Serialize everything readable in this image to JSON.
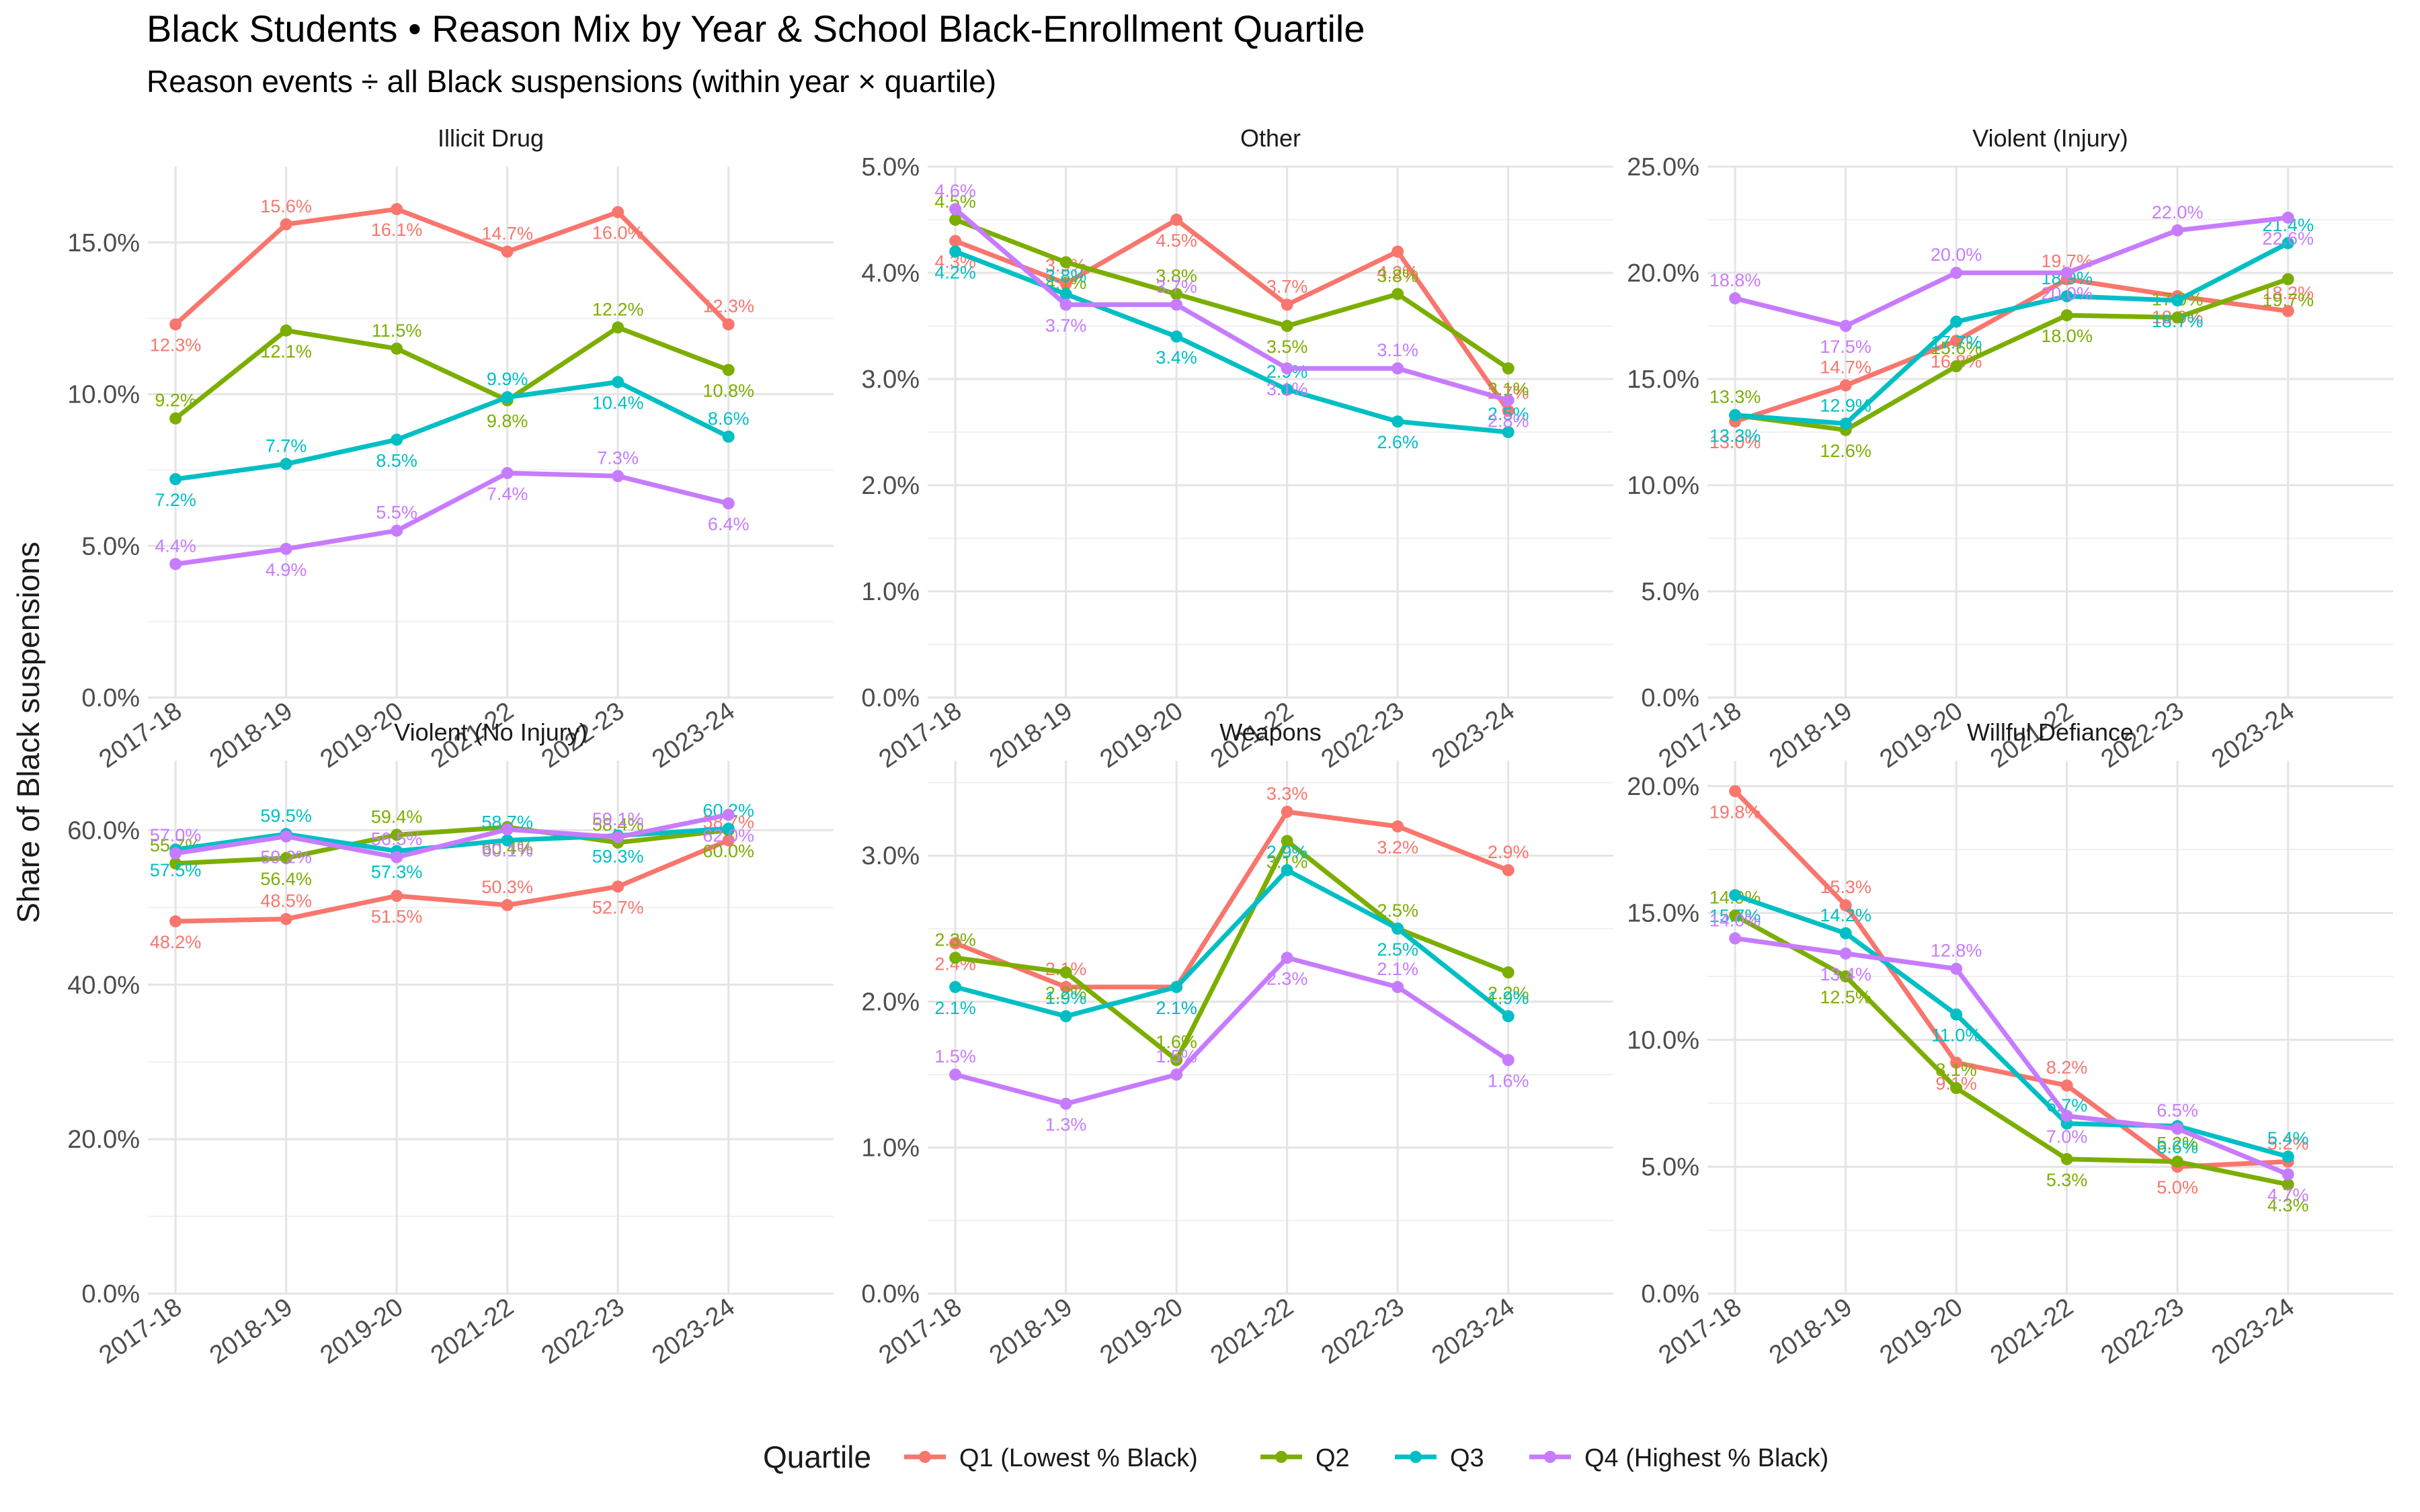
{
  "chart_data": {
    "type": "line",
    "title": "Black Students • Reason Mix by Year & School Black-Enrollment Quartile",
    "subtitle": "Reason events ÷ all Black suspensions (within year × quartile)",
    "ylabel": "Share of Black suspensions",
    "xlabel": "",
    "grid": true,
    "legend": {
      "title": "Quartile",
      "position": "bottom",
      "entries": [
        "Q1 (Lowest % Black)",
        "Q2",
        "Q3",
        "Q4 (Highest % Black)"
      ]
    },
    "categories": [
      "2017-18",
      "2018-19",
      "2019-20",
      "2021-22",
      "2022-23",
      "2023-24"
    ],
    "series_colors": [
      "#F8766D",
      "#7CAE00",
      "#00BFC4",
      "#C77CFF"
    ],
    "panels": [
      {
        "name": "Illicit Drug",
        "ylim": [
          0,
          0.175
        ],
        "yticks": [
          0,
          0.05,
          0.1,
          0.15
        ],
        "ytick_labels": [
          "0.0%",
          "5.0%",
          "10.0%",
          "15.0%"
        ],
        "series": [
          {
            "values": [
              0.123,
              0.156,
              0.161,
              0.147,
              0.16,
              0.123
            ],
            "labels": [
              "12.3%",
              "15.6%",
              "16.1%",
              "14.7%",
              "16.0%",
              "12.3%"
            ]
          },
          {
            "values": [
              0.092,
              0.121,
              0.115,
              0.098,
              0.122,
              0.108
            ],
            "labels": [
              "9.2%",
              "12.1%",
              "11.5%",
              "9.8%",
              "12.2%",
              "10.8%"
            ]
          },
          {
            "values": [
              0.072,
              0.077,
              0.085,
              0.099,
              0.104,
              0.086
            ],
            "labels": [
              "7.2%",
              "7.7%",
              "8.5%",
              "9.9%",
              "10.4%",
              "8.6%"
            ]
          },
          {
            "values": [
              0.044,
              0.049,
              0.055,
              0.074,
              0.073,
              0.064
            ],
            "labels": [
              "4.4%",
              "4.9%",
              "5.5%",
              "7.4%",
              "7.3%",
              "6.4%"
            ]
          }
        ]
      },
      {
        "name": "Other",
        "ylim": [
          0,
          0.05
        ],
        "yticks": [
          0,
          0.01,
          0.02,
          0.03,
          0.04,
          0.05
        ],
        "ytick_labels": [
          "0.0%",
          "1.0%",
          "2.0%",
          "3.0%",
          "4.0%",
          "5.0%"
        ],
        "series": [
          {
            "values": [
              0.043,
              0.039,
              0.045,
              0.037,
              0.042,
              0.027
            ],
            "labels": [
              "4.3%",
              "3.9%",
              "4.5%",
              "3.7%",
              "4.2%",
              "2.7%"
            ]
          },
          {
            "values": [
              0.045,
              0.041,
              0.038,
              0.035,
              0.038,
              0.031
            ],
            "labels": [
              "4.5%",
              "4.1%",
              "3.8%",
              "3.5%",
              "3.8%",
              "3.1%"
            ]
          },
          {
            "values": [
              0.042,
              0.038,
              0.034,
              0.029,
              0.026,
              0.025
            ],
            "labels": [
              "4.2%",
              "3.8%",
              "3.4%",
              "2.9%",
              "2.6%",
              "2.5%"
            ]
          },
          {
            "values": [
              0.046,
              0.037,
              0.037,
              0.031,
              0.031,
              0.028
            ],
            "labels": [
              "4.6%",
              "3.7%",
              "3.7%",
              "3.1%",
              "3.1%",
              "2.8%"
            ]
          }
        ]
      },
      {
        "name": "Violent (Injury)",
        "ylim": [
          0,
          0.25
        ],
        "yticks": [
          0,
          0.05,
          0.1,
          0.15,
          0.2,
          0.25
        ],
        "ytick_labels": [
          "0.0%",
          "5.0%",
          "10.0%",
          "15.0%",
          "20.0%",
          "25.0%"
        ],
        "series": [
          {
            "values": [
              0.13,
              0.147,
              0.168,
              0.197,
              0.189,
              0.182
            ],
            "labels": [
              "13.0%",
              "14.7%",
              "16.8%",
              "19.7%",
              "18.9%",
              "18.2%"
            ]
          },
          {
            "values": [
              0.133,
              0.126,
              0.156,
              0.18,
              0.179,
              0.197
            ],
            "labels": [
              "13.3%",
              "12.6%",
              "15.6%",
              "18.0%",
              "17.9%",
              "19.7%"
            ]
          },
          {
            "values": [
              0.133,
              0.129,
              0.177,
              0.189,
              0.187,
              0.214
            ],
            "labels": [
              "13.3%",
              "12.9%",
              "17.7%",
              "18.9%",
              "18.7%",
              "21.4%"
            ]
          },
          {
            "values": [
              0.188,
              0.175,
              0.2,
              0.2,
              0.22,
              0.226
            ],
            "labels": [
              "18.8%",
              "17.5%",
              "20.0%",
              "20.0%",
              "22.0%",
              "22.6%"
            ]
          }
        ]
      },
      {
        "name": "Violent (No Injury)",
        "ylim": [
          0,
          0.69
        ],
        "yticks": [
          0,
          0.2,
          0.4,
          0.6
        ],
        "ytick_labels": [
          "0.0%",
          "20.0%",
          "40.0%",
          "60.0%"
        ],
        "series": [
          {
            "values": [
              0.482,
              0.485,
              0.515,
              0.503,
              0.527,
              0.587
            ],
            "labels": [
              "48.2%",
              "48.5%",
              "51.5%",
              "50.3%",
              "52.7%",
              "58.7%"
            ]
          },
          {
            "values": [
              0.557,
              0.564,
              0.594,
              0.604,
              0.584,
              0.6
            ],
            "labels": [
              "55.7%",
              "56.4%",
              "59.4%",
              "60.4%",
              "58.4%",
              "60.0%"
            ]
          },
          {
            "values": [
              0.575,
              0.595,
              0.573,
              0.587,
              0.593,
              0.602
            ],
            "labels": [
              "57.5%",
              "59.5%",
              "57.3%",
              "58.7%",
              "59.3%",
              "60.2%"
            ]
          },
          {
            "values": [
              0.57,
              0.592,
              0.565,
              0.601,
              0.591,
              0.62
            ],
            "labels": [
              "57.0%",
              "59.2%",
              "56.5%",
              "60.1%",
              "59.1%",
              "62.0%"
            ]
          }
        ]
      },
      {
        "name": "Weapons",
        "ylim": [
          0,
          0.0365
        ],
        "yticks": [
          0,
          0.01,
          0.02,
          0.03
        ],
        "ytick_labels": [
          "0.0%",
          "1.0%",
          "2.0%",
          "3.0%"
        ],
        "series": [
          {
            "values": [
              0.024,
              0.021,
              0.021,
              0.033,
              0.032,
              0.029
            ],
            "labels": [
              "2.4%",
              "2.1%",
              "2.1%",
              "3.3%",
              "3.2%",
              "2.9%"
            ]
          },
          {
            "values": [
              0.023,
              0.022,
              0.016,
              0.031,
              0.025,
              0.022
            ],
            "labels": [
              "2.3%",
              "2.2%",
              "1.6%",
              "3.1%",
              "2.5%",
              "2.2%"
            ]
          },
          {
            "values": [
              0.021,
              0.019,
              0.021,
              0.029,
              0.025,
              0.019
            ],
            "labels": [
              "2.1%",
              "1.9%",
              "2.1%",
              "2.9%",
              "2.5%",
              "1.9%"
            ]
          },
          {
            "values": [
              0.015,
              0.013,
              0.015,
              0.023,
              0.021,
              0.016
            ],
            "labels": [
              "1.5%",
              "1.3%",
              "1.5%",
              "2.3%",
              "2.1%",
              "1.6%"
            ]
          }
        ]
      },
      {
        "name": "Willful Defiance",
        "ylim": [
          0,
          0.21
        ],
        "yticks": [
          0,
          0.05,
          0.1,
          0.15,
          0.2
        ],
        "ytick_labels": [
          "0.0%",
          "5.0%",
          "10.0%",
          "15.0%",
          "20.0%"
        ],
        "series": [
          {
            "values": [
              0.198,
              0.153,
              0.091,
              0.082,
              0.05,
              0.052
            ],
            "labels": [
              "19.8%",
              "15.3%",
              "9.1%",
              "8.2%",
              "5.0%",
              "5.2%"
            ]
          },
          {
            "values": [
              0.149,
              0.125,
              0.081,
              0.053,
              0.052,
              0.043
            ],
            "labels": [
              "14.9%",
              "12.5%",
              "8.1%",
              "5.3%",
              "5.2%",
              "4.3%"
            ]
          },
          {
            "values": [
              0.157,
              0.142,
              0.11,
              0.067,
              0.066,
              0.054
            ],
            "labels": [
              "15.7%",
              "14.2%",
              "11.0%",
              "6.7%",
              "6.6%",
              "5.4%"
            ]
          },
          {
            "values": [
              0.14,
              0.134,
              0.128,
              0.07,
              0.065,
              0.047
            ],
            "labels": [
              "14.0%",
              "13.4%",
              "12.8%",
              "7.0%",
              "6.5%",
              "4.7%"
            ]
          }
        ]
      }
    ]
  }
}
